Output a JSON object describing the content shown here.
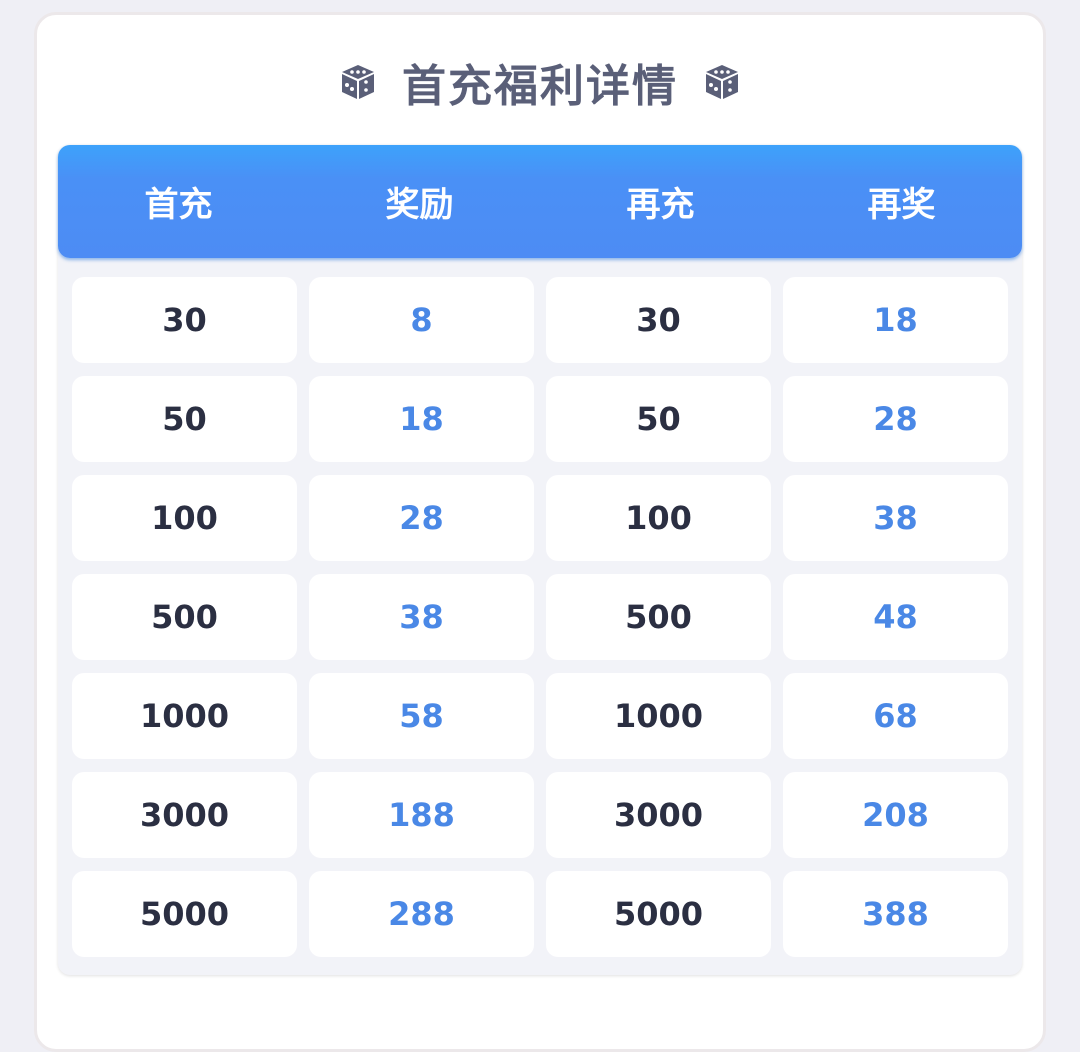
{
  "title": {
    "text": "首充福利详情",
    "icon": "dice-icon"
  },
  "colors": {
    "header": "#4d8cf4",
    "value_dark": "#2b2f42",
    "value_blue": "#4a88e6",
    "title": "#5a5f78"
  },
  "table": {
    "headers": [
      "首充",
      "奖励",
      "再充",
      "再奖"
    ],
    "rows": [
      [
        "30",
        "8",
        "30",
        "18"
      ],
      [
        "50",
        "18",
        "50",
        "28"
      ],
      [
        "100",
        "28",
        "100",
        "38"
      ],
      [
        "500",
        "38",
        "500",
        "48"
      ],
      [
        "1000",
        "58",
        "1000",
        "68"
      ],
      [
        "3000",
        "188",
        "3000",
        "208"
      ],
      [
        "5000",
        "288",
        "5000",
        "388"
      ]
    ]
  }
}
